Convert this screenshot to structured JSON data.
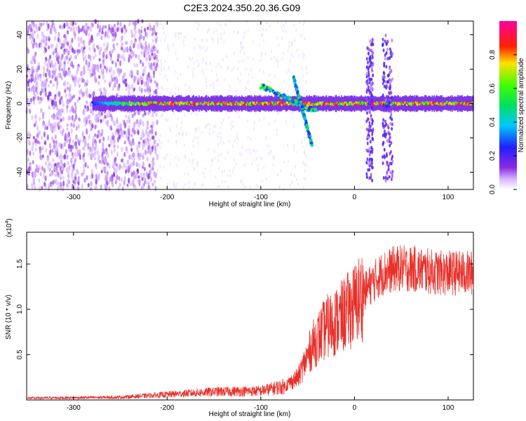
{
  "title": "C2E3.2024.350.20.36.G09",
  "colors": {
    "snr_line": "#e8302a",
    "spectro_base": "#7a1ee6",
    "background": "#ffffff"
  },
  "chart_data": [
    {
      "type": "heatmap",
      "xlabel": "Height of straight line (km)",
      "ylabel": "Frequency (Hz)",
      "xlim": [
        -350,
        127
      ],
      "ylim": [
        -50,
        48
      ],
      "xticks": [
        -300,
        -200,
        -100,
        0,
        100
      ],
      "yticks": [
        -40,
        -20,
        0,
        20,
        40
      ],
      "xtick_labels": [
        "-300",
        "-200",
        "-100",
        "0",
        "100"
      ],
      "ytick_labels": [
        "-40",
        "-20",
        "0",
        "20",
        "40"
      ],
      "colorbar": {
        "label": "Normalized spectral amplitude",
        "range": [
          0,
          1
        ],
        "ticks": [
          0,
          0.2,
          0.4,
          0.6,
          0.8
        ],
        "tick_labels": [
          "0.0",
          "0.2",
          "0.4",
          "0.6",
          "0.8"
        ],
        "colormap": "rainbow (white-violet-blue-cyan-green-yellow-red-magenta)"
      },
      "features": [
        {
          "kind": "noise",
          "x_range": [
            -350,
            -210
          ],
          "y_range": [
            -50,
            48
          ],
          "amplitude": 0.25
        },
        {
          "kind": "band",
          "x_range": [
            -280,
            127
          ],
          "y_center": 0,
          "amplitude": 0.55
        },
        {
          "kind": "streak",
          "x_range": [
            -100,
            -40
          ],
          "y_range": [
            10,
            -5
          ],
          "amplitude": 0.5
        },
        {
          "kind": "streak",
          "x_range": [
            -65,
            -45
          ],
          "y_range": [
            15,
            -25
          ],
          "amplitude": 0.35
        },
        {
          "kind": "vertical_burst",
          "x_range": [
            13,
            20
          ],
          "y_range": [
            -45,
            40
          ],
          "amplitude": 0.3
        },
        {
          "kind": "vertical_burst",
          "x_range": [
            30,
            41
          ],
          "y_range": [
            -45,
            40
          ],
          "amplitude": 0.3
        }
      ]
    },
    {
      "type": "line",
      "xlabel": "Height of straight line (km)",
      "ylabel": "SNR (10 * v/v)",
      "y_exponent_label": "(x10",
      "y_exponent": "4",
      "y_exponent_close": ")",
      "xlim": [
        -350,
        127
      ],
      "ylim": [
        0,
        18500
      ],
      "xticks": [
        -300,
        -200,
        -100,
        0,
        100
      ],
      "yticks": [
        5000,
        10000,
        15000
      ],
      "xtick_labels": [
        "-300",
        "-200",
        "-100",
        "0",
        "100"
      ],
      "ytick_labels": [
        "0.5",
        "1.0",
        "1.5"
      ],
      "x": [
        -350,
        -300,
        -250,
        -200,
        -150,
        -100,
        -75,
        -60,
        -45,
        -30,
        -15,
        0,
        15,
        30,
        45,
        60,
        90,
        127
      ],
      "y": [
        200,
        250,
        300,
        600,
        900,
        1000,
        1500,
        2500,
        6000,
        8000,
        9000,
        10500,
        12500,
        14000,
        14500,
        14500,
        14000,
        14000
      ]
    }
  ]
}
